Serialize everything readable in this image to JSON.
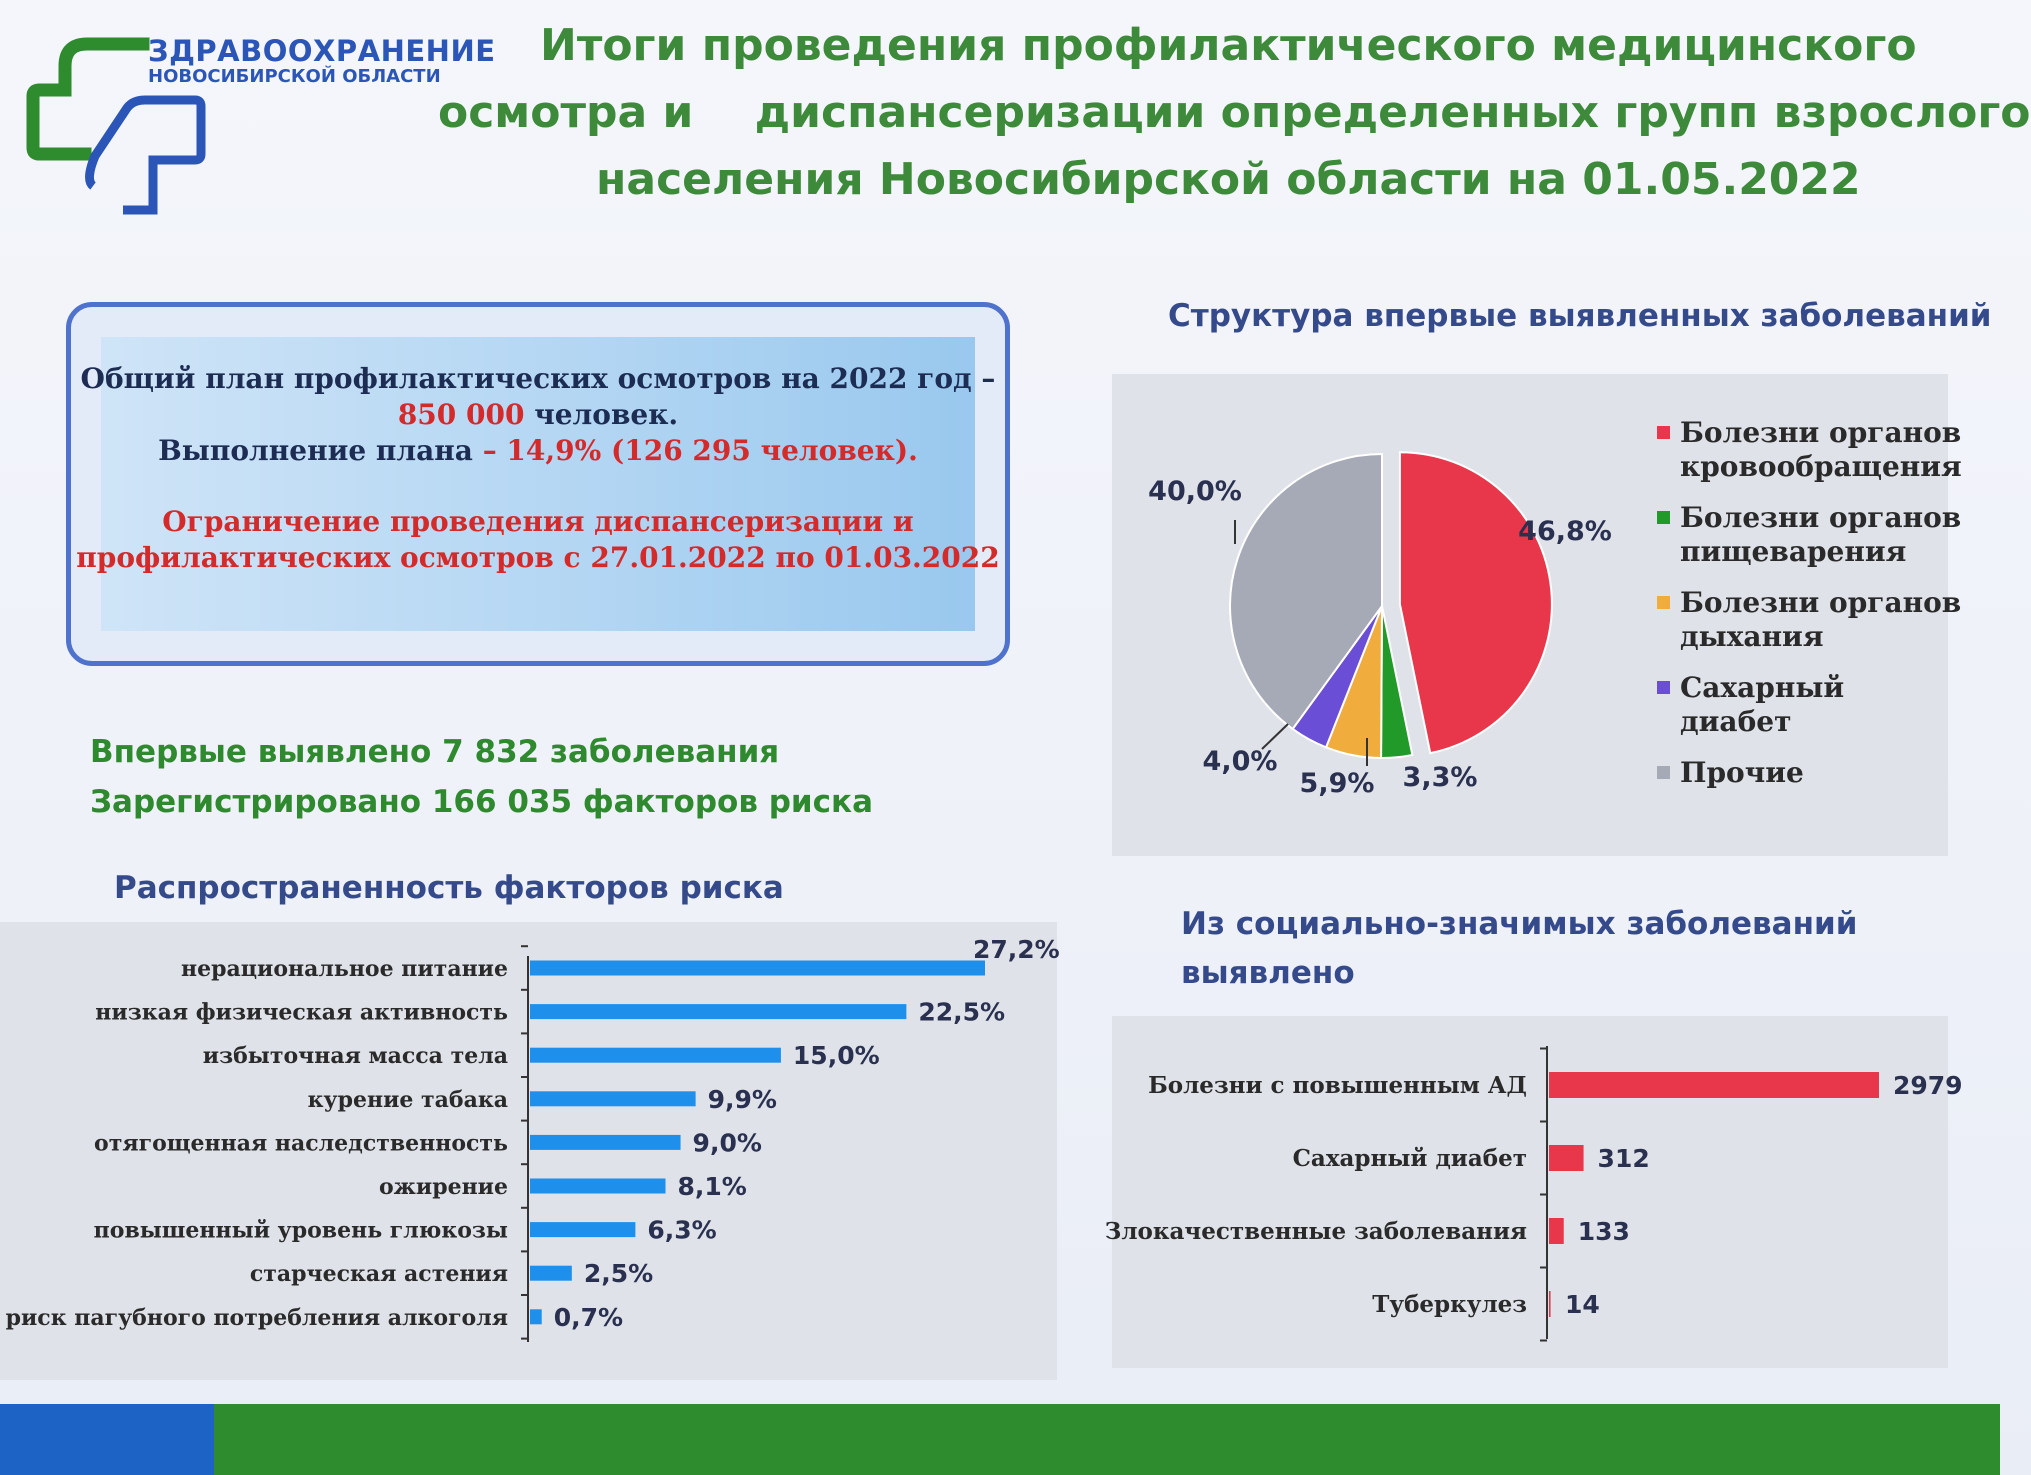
{
  "header": {
    "logo_title": "ЗДРАВООХРАНЕНИЕ",
    "logo_subtitle": "НОВОСИБИРСКОЙ ОБЛАСТИ",
    "title_lines": [
      "Итоги проведения профилактического медицинского",
      "осмотра и    диспансеризации определенных групп взрослого",
      "населения Новосибирской области на 01.05.2022"
    ]
  },
  "info_box": {
    "line1": "Общий план профилактических осмотров на 2022 год –",
    "line2_value": "850 000",
    "line2_rest": " человек.",
    "line3_prefix": "Выполнение плана ",
    "line3_value": "– 14,9% (126 295 человек).",
    "line4": "Ограничение проведения диспансеризации и",
    "line5": "профилактических осмотров с 27.01.2022 по 01.03.2022"
  },
  "stats": {
    "first_detected": "Впервые выявлено 7 832 заболевания",
    "registered": "Зарегистрировано  166 035 факторов риска"
  },
  "colors": {
    "red": "#e8364a",
    "green": "#229a2a",
    "orange": "#f0ac3c",
    "purple": "#6a4ed6",
    "gray": "#a6a9b6",
    "bar_blue": "#1e8fea",
    "title_green": "#3d8a3a",
    "heading_blue": "#354a8a"
  },
  "chart_data": [
    {
      "type": "pie",
      "title": "Структура впервые выявленных заболеваний",
      "legend_position": "right",
      "slices": [
        {
          "label": "Болезни органов кровообращения",
          "value": 46.8,
          "value_label": "46,8%",
          "color": "#e8364a"
        },
        {
          "label": "Болезни органов пищеварения",
          "value": 3.3,
          "value_label": "3,3%",
          "color": "#229a2a"
        },
        {
          "label": "Болезни органов дыхания",
          "value": 5.9,
          "value_label": "5,9%",
          "color": "#f0ac3c"
        },
        {
          "label": "Сахарный диабет",
          "value": 4.0,
          "value_label": "4,0%",
          "color": "#6a4ed6"
        },
        {
          "label": "Прочие",
          "value": 40.0,
          "value_label": "40,0%",
          "color": "#a6a9b6"
        }
      ]
    },
    {
      "type": "bar",
      "orientation": "horizontal",
      "title": "Распространенность факторов риска",
      "categories": [
        "нерациональное питание",
        "низкая физическая активность",
        "избыточная масса тела",
        "курение табака",
        "отягощенная наследственность",
        "ожирение",
        "повышенный уровень глюкозы",
        "старческая астения",
        "риск пагубного потребления алкоголя"
      ],
      "values": [
        27.2,
        22.5,
        15.0,
        9.9,
        9.0,
        8.1,
        6.3,
        2.5,
        0.7
      ],
      "value_labels": [
        "27,2%",
        "22,5%",
        "15,0%",
        "9,9%",
        "9,0%",
        "8,1%",
        "6,3%",
        "2,5%",
        "0,7%"
      ],
      "xlim": [
        0,
        27.2
      ]
    },
    {
      "type": "bar",
      "orientation": "horizontal",
      "title_lines": [
        "Из социально-значимых заболеваний",
        "выявлено"
      ],
      "categories": [
        "Болезни с повышенным АД",
        "Сахарный диабет",
        "Злокачественные заболевания",
        "Туберкулез"
      ],
      "values": [
        2979,
        312,
        133,
        14
      ],
      "value_labels": [
        "2979",
        "312",
        "133",
        "14"
      ],
      "xlim": [
        0,
        2979
      ]
    }
  ]
}
